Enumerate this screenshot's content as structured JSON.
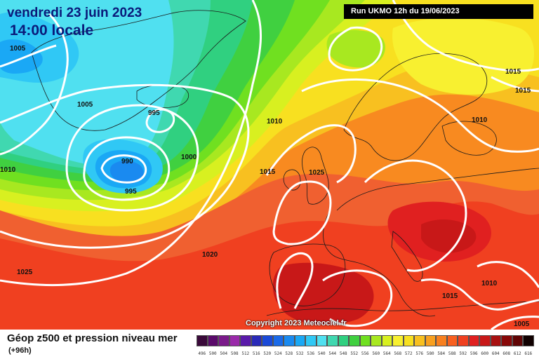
{
  "header": {
    "date": "vendredi 23 juin 2023",
    "time": "14:00 locale",
    "run": "Run UKMO 12h du 19/06/2023"
  },
  "copyright": "Copyright 2023 Meteociel.fr",
  "legend": {
    "title": "Géop z500 et pression niveau mer",
    "subtitle": "(+96h)",
    "scale_labels": [
      "496",
      "500",
      "504",
      "508",
      "512",
      "516",
      "520",
      "524",
      "528",
      "532",
      "536",
      "540",
      "544",
      "548",
      "552",
      "556",
      "560",
      "564",
      "568",
      "572",
      "576",
      "580",
      "584",
      "588",
      "592",
      "596",
      "600",
      "604",
      "608",
      "612",
      "616"
    ],
    "scale_colors": [
      "#3a0a3a",
      "#5a0a6a",
      "#7a1a8a",
      "#9a2aaa",
      "#5a1aaa",
      "#2a2ab8",
      "#1a4ad8",
      "#1a6ae8",
      "#1a8af0",
      "#1aa8f5",
      "#30c8f5",
      "#50e0f0",
      "#40d8b0",
      "#30d080",
      "#40d040",
      "#70e020",
      "#a8e820",
      "#d8f020",
      "#f8f030",
      "#f8e020",
      "#f8c020",
      "#f8a020",
      "#f88020",
      "#f86020",
      "#f04020",
      "#e02020",
      "#c81818",
      "#a81010",
      "#880808",
      "#600404",
      "#100000"
    ]
  },
  "isobars": [
    "1005",
    "1005",
    "995",
    "990",
    "995",
    "1000",
    "1010",
    "1015",
    "1025",
    "1020",
    "1025",
    "1010",
    "1015",
    "1015",
    "1010",
    "1010",
    "1005",
    "1015"
  ]
}
